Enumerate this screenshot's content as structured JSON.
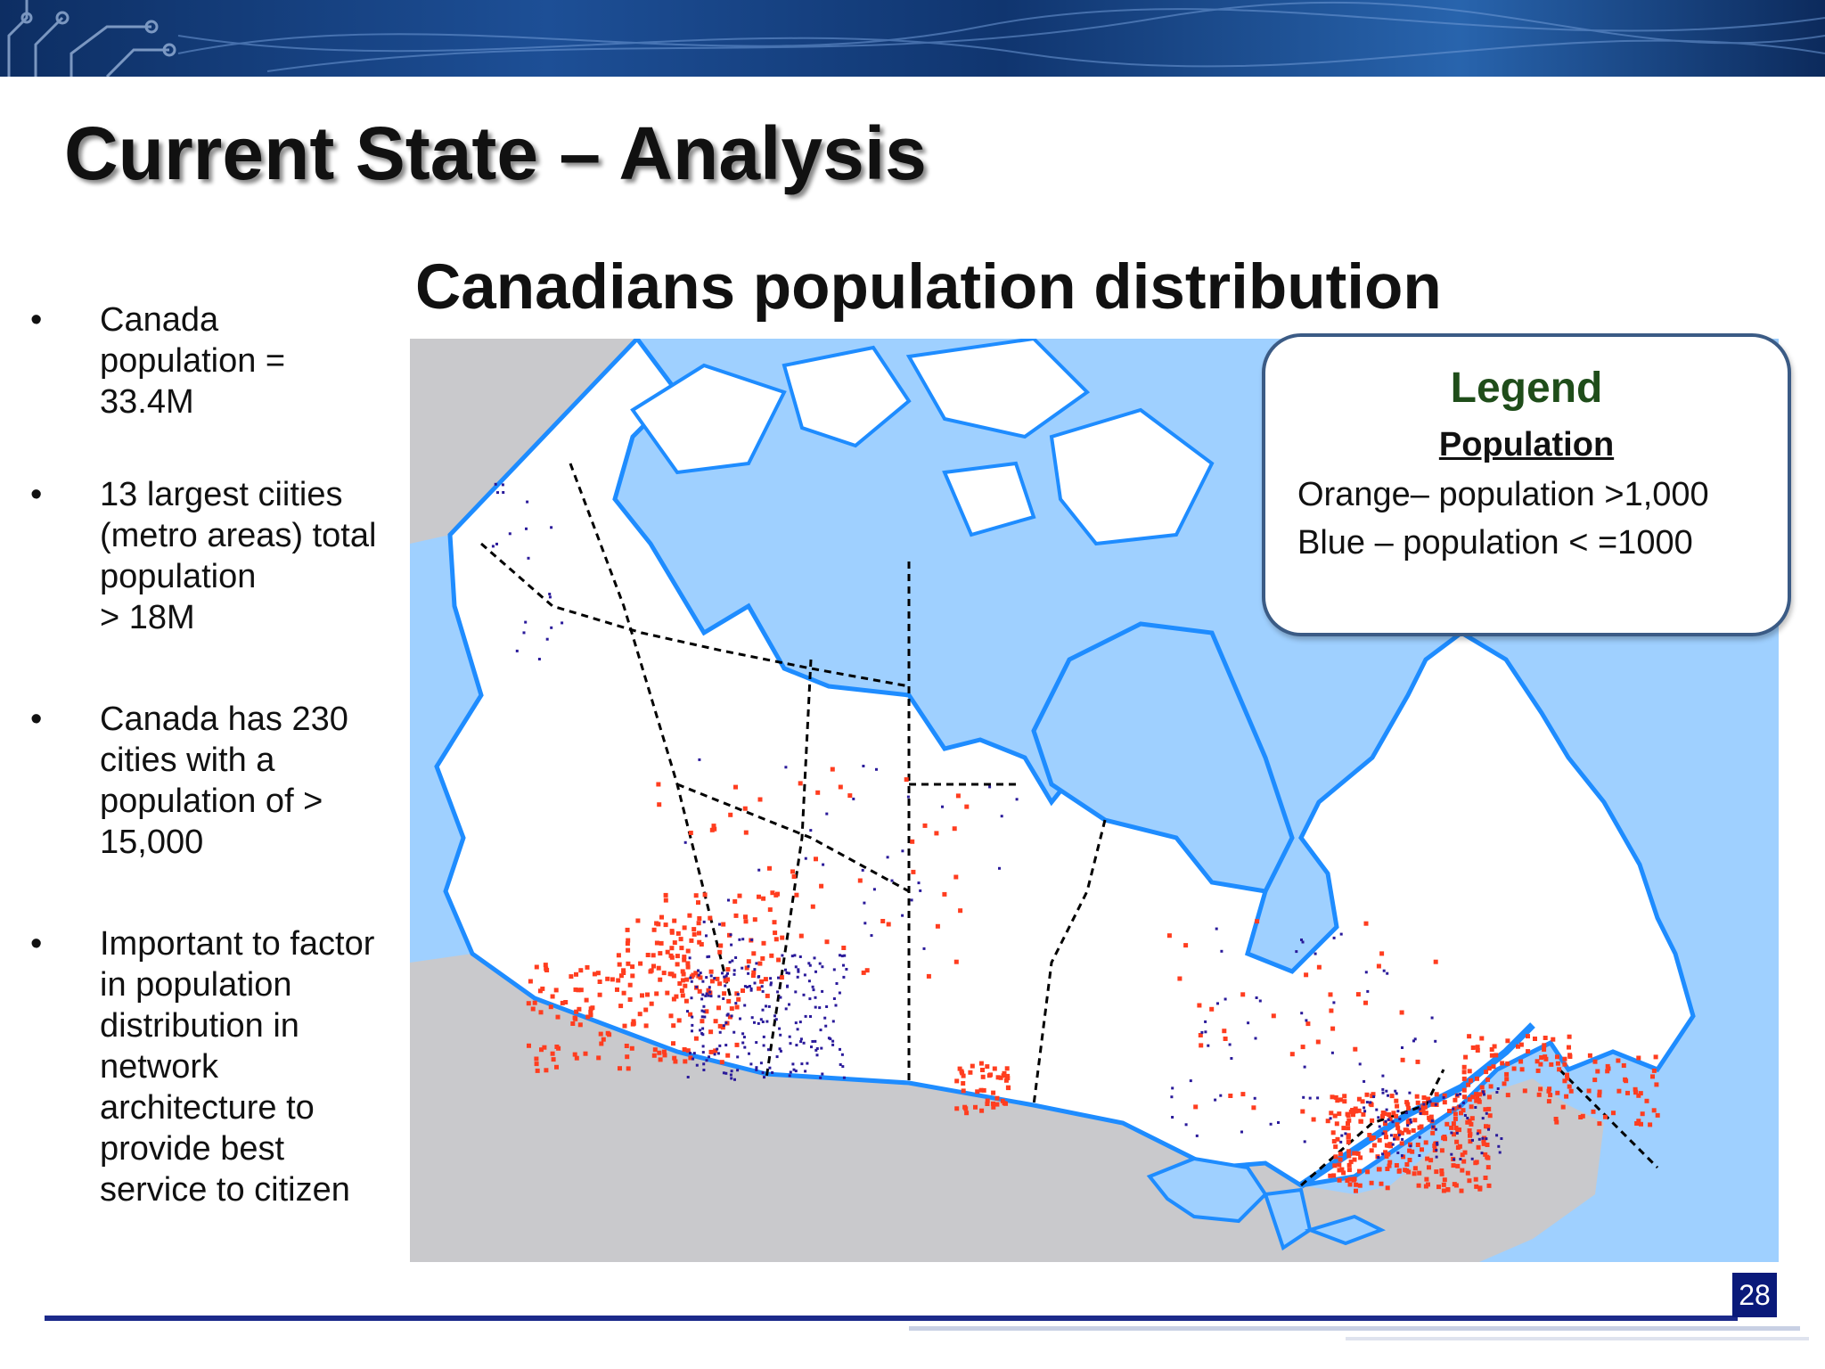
{
  "slide": {
    "title": "Current State – Analysis",
    "subtitle": "Canadians population distribution",
    "page_number": "28"
  },
  "bullets": [
    {
      "lines": [
        "Canada",
        "population =",
        "33.4M"
      ]
    },
    {
      "lines": [
        "13 largest ciities",
        "(metro areas) total",
        "population",
        ">  18M"
      ]
    },
    {
      "lines": [
        "Canada has 230",
        "cities with a",
        "population of  >",
        "15,000"
      ]
    },
    {
      "lines": [
        "Important to factor",
        "in population",
        "distribution in",
        "network",
        "architecture to",
        "provide best",
        "service to citizen"
      ]
    }
  ],
  "legend": {
    "title": "Legend",
    "subtitle": "Population",
    "rows": [
      "Orange– population >1,000",
      "Blue – population < =1000"
    ]
  },
  "colors": {
    "orange": "#ff3d1f",
    "blue": "#2a1a9a",
    "water": "#9fd0ff",
    "coast": "#1e8cff",
    "usa": "#c9c9cc",
    "page_number_bg": "#0a1a7a"
  },
  "icons": {
    "bullet": "•"
  }
}
